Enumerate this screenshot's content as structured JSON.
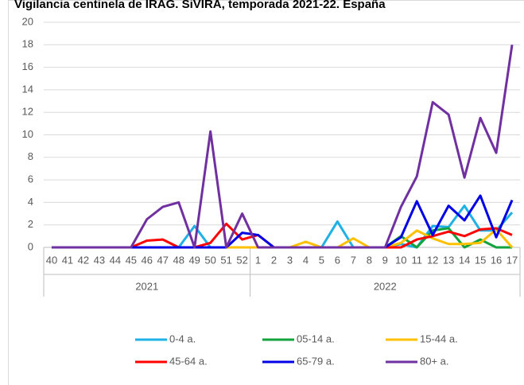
{
  "chart_data": {
    "type": "line",
    "title": "Vigilancia centinela de IRAG. SiVIRA, temporada 2021-22. España",
    "categories": [
      "40",
      "41",
      "42",
      "43",
      "44",
      "45",
      "46",
      "47",
      "48",
      "49",
      "50",
      "51",
      "52",
      "1",
      "2",
      "3",
      "4",
      "5",
      "6",
      "7",
      "8",
      "9",
      "10",
      "11",
      "12",
      "13",
      "14",
      "15",
      "16",
      "17"
    ],
    "category_groups": [
      {
        "label": "2021",
        "count": 13
      },
      {
        "label": "2022",
        "count": 17
      }
    ],
    "ylim": [
      0,
      20
    ],
    "yticks": [
      0,
      2,
      4,
      6,
      8,
      10,
      12,
      14,
      16,
      18,
      20
    ],
    "grid": true,
    "legend": "bottom",
    "series": [
      {
        "name": "0-4 a.",
        "color": "#1fb1e6",
        "values": [
          0,
          0,
          0,
          0,
          0,
          0,
          0,
          0,
          0,
          1.9,
          0,
          0,
          0,
          0,
          0,
          0,
          0,
          0,
          2.3,
          0,
          0,
          0,
          0.3,
          0,
          1.9,
          1.8,
          3.7,
          1.5,
          1.5,
          3.1
        ]
      },
      {
        "name": "05-14 a.",
        "color": "#12a33c",
        "values": [
          0,
          0,
          0,
          0,
          0,
          0,
          0,
          0,
          0,
          0,
          0,
          0,
          0,
          0,
          0,
          0,
          0,
          0,
          0,
          0,
          0,
          0,
          1.0,
          0,
          1.5,
          1.7,
          0,
          0.7,
          0,
          0
        ]
      },
      {
        "name": "15-44 a.",
        "color": "#ffc000",
        "values": [
          0,
          0,
          0,
          0,
          0,
          0,
          0,
          0,
          0,
          0,
          0,
          0,
          0,
          0,
          0,
          0,
          0.5,
          0,
          0,
          0.8,
          0,
          0,
          0.4,
          1.5,
          0.8,
          0.3,
          0.3,
          0.4,
          1.6,
          0
        ]
      },
      {
        "name": "45-64 a.",
        "color": "#ff0000",
        "values": [
          0,
          0,
          0,
          0,
          0,
          0,
          0.6,
          0.7,
          0,
          0,
          0.4,
          2.1,
          0.7,
          1.1,
          0,
          0,
          0,
          0,
          0,
          0,
          0,
          0,
          0,
          0.7,
          1.0,
          1.4,
          1.0,
          1.6,
          1.7,
          1.1
        ]
      },
      {
        "name": "65-79 a.",
        "color": "#0000e6",
        "values": [
          0,
          0,
          0,
          0,
          0,
          0,
          0,
          0,
          0,
          0,
          0,
          0,
          1.3,
          1.1,
          0,
          0,
          0,
          0,
          0,
          0,
          0,
          0,
          0.9,
          4.1,
          1.1,
          3.7,
          2.4,
          4.6,
          0.9,
          4.2
        ]
      },
      {
        "name": "80+ a.",
        "color": "#7030a0",
        "values": [
          0,
          0,
          0,
          0,
          0,
          0,
          2.5,
          3.6,
          4.0,
          0,
          10.3,
          0,
          3.0,
          0,
          0,
          0,
          0,
          0,
          0,
          0,
          0,
          0,
          3.6,
          6.3,
          12.9,
          11.8,
          6.2,
          11.5,
          8.4,
          18.0
        ]
      }
    ]
  }
}
